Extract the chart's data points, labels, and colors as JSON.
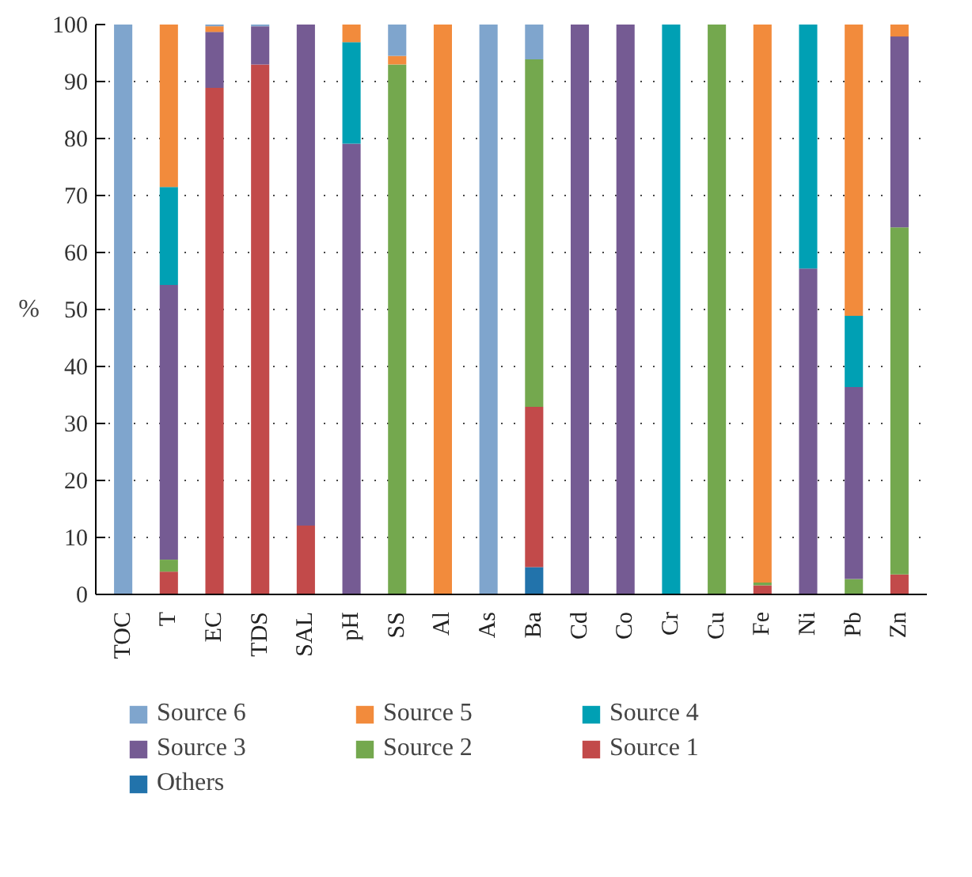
{
  "chart_data": {
    "type": "bar",
    "stacked": true,
    "ylabel": "%",
    "categories": [
      "TOC",
      "T",
      "EC",
      "TDS",
      "SAL",
      "pH",
      "SS",
      "Al",
      "As",
      "Ba",
      "Cd",
      "Co",
      "Cr",
      "Cu",
      "Fe",
      "Ni",
      "Pb",
      "Zn"
    ],
    "series": [
      {
        "name": "Others",
        "color": "#2273ab",
        "values": [
          null,
          null,
          null,
          null,
          null,
          null,
          null,
          null,
          null,
          4.8,
          null,
          null,
          null,
          null,
          null,
          null,
          null,
          null
        ]
      },
      {
        "name": "Source 1",
        "color": "#c24a4a",
        "values": [
          null,
          4.0,
          88.9,
          93.0,
          12.1,
          null,
          null,
          null,
          null,
          28.1,
          null,
          null,
          null,
          null,
          1.6,
          null,
          null,
          3.5
        ]
      },
      {
        "name": "Source 2",
        "color": "#74a84e",
        "values": [
          null,
          2.1,
          null,
          null,
          null,
          null,
          93.0,
          null,
          null,
          61.0,
          null,
          null,
          null,
          100,
          0.5,
          null,
          2.7,
          60.9
        ]
      },
      {
        "name": "Source 3",
        "color": "#755b93",
        "values": [
          null,
          48.2,
          9.8,
          6.7,
          87.9,
          79.1,
          null,
          null,
          null,
          null,
          100,
          100,
          null,
          null,
          null,
          57.2,
          33.7,
          33.5
        ]
      },
      {
        "name": "Source 4",
        "color": "#00a0b4",
        "values": [
          null,
          17.2,
          null,
          null,
          null,
          17.8,
          null,
          null,
          null,
          null,
          null,
          null,
          100,
          null,
          null,
          42.8,
          12.5,
          null
        ]
      },
      {
        "name": "Source 5",
        "color": "#f28b3c",
        "values": [
          null,
          28.5,
          1.0,
          null,
          null,
          3.1,
          1.5,
          100,
          null,
          null,
          null,
          null,
          null,
          null,
          97.9,
          null,
          51.1,
          2.1
        ]
      },
      {
        "name": "Source 6",
        "color": "#7fa5cd",
        "values": [
          100,
          null,
          0.3,
          0.3,
          null,
          null,
          5.5,
          null,
          100,
          6.1,
          null,
          null,
          null,
          null,
          null,
          null,
          null,
          null
        ]
      }
    ],
    "ylim": [
      0,
      100
    ],
    "yticks": [
      0,
      10,
      20,
      30,
      40,
      50,
      60,
      70,
      80,
      90,
      100
    ],
    "grid": "y",
    "legend": "bottom"
  }
}
